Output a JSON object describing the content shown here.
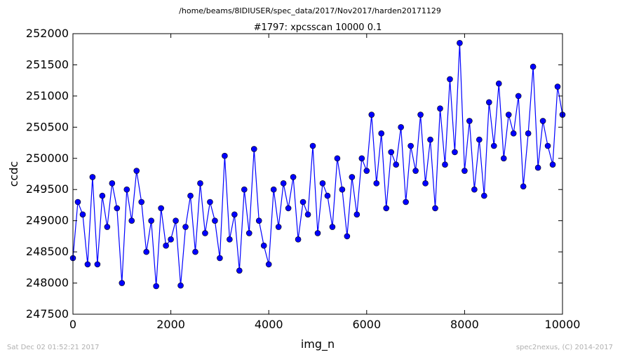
{
  "figure": {
    "suptitle": "/home/beams/8IDIUSER/spec_data/2017/Nov2017/harden20171129",
    "footer_left": "Sat Dec 02 01:52:21 2017",
    "footer_right": "spec2nexus, (C) 2014-2017"
  },
  "chart_data": {
    "type": "line",
    "title": "#1797: xpcsscan 10000 0.1",
    "xlabel": "img_n",
    "ylabel": "ccdc",
    "xlim": [
      0,
      10000
    ],
    "ylim": [
      247500,
      252000
    ],
    "xticks": [
      0,
      2000,
      4000,
      6000,
      8000,
      10000
    ],
    "yticks": [
      247500,
      248000,
      248500,
      249000,
      249500,
      250000,
      250500,
      251000,
      251500,
      252000
    ],
    "grid": false,
    "marker": "circle",
    "color": "#0000ff",
    "series": [
      {
        "x": [
          0,
          100,
          200,
          300,
          400,
          500,
          600,
          700,
          800,
          900,
          1000,
          1100,
          1200,
          1300,
          1400,
          1500,
          1600,
          1700,
          1800,
          1900,
          2000,
          2100,
          2200,
          2300,
          2400,
          2500,
          2600,
          2700,
          2800,
          2900,
          3000,
          3100,
          3200,
          3300,
          3400,
          3500,
          3600,
          3700,
          3800,
          3900,
          4000,
          4100,
          4200,
          4300,
          4400,
          4500,
          4600,
          4700,
          4800,
          4900,
          5000,
          5100,
          5200,
          5300,
          5400,
          5500,
          5600,
          5700,
          5800,
          5900,
          6000,
          6100,
          6200,
          6300,
          6400,
          6500,
          6600,
          6700,
          6800,
          6900,
          7000,
          7100,
          7200,
          7300,
          7400,
          7500,
          7600,
          7700,
          7800,
          7900,
          8000,
          8100,
          8200,
          8300,
          8400,
          8500,
          8600,
          8700,
          8800,
          8900,
          9000,
          9100,
          9200,
          9300,
          9400,
          9500,
          9600,
          9700,
          9800,
          9900,
          10000
        ],
        "values": [
          248400,
          249300,
          249100,
          248300,
          249700,
          248300,
          249400,
          248900,
          249600,
          249200,
          248000,
          249500,
          249000,
          249800,
          249300,
          248500,
          249000,
          247950,
          249200,
          248600,
          248700,
          249000,
          247960,
          248900,
          249400,
          248500,
          249600,
          248800,
          249300,
          249000,
          248400,
          250040,
          248700,
          249100,
          248200,
          249500,
          248800,
          250150,
          249000,
          248600,
          248300,
          249500,
          248900,
          249600,
          249200,
          249700,
          248700,
          249300,
          249100,
          250200,
          248800,
          249600,
          249400,
          248900,
          250000,
          249500,
          248750,
          249700,
          249100,
          250000,
          249800,
          250700,
          249600,
          250400,
          249200,
          250100,
          249900,
          250500,
          249300,
          250200,
          249800,
          250700,
          249600,
          250300,
          249200,
          250800,
          249900,
          251270,
          250100,
          251850,
          249800,
          250600,
          249500,
          250300,
          249400,
          250900,
          250200,
          251200,
          250000,
          250700,
          250400,
          251000,
          249550,
          250400,
          251470,
          249850,
          250600,
          250200,
          249900,
          251150,
          250700
        ]
      }
    ]
  }
}
